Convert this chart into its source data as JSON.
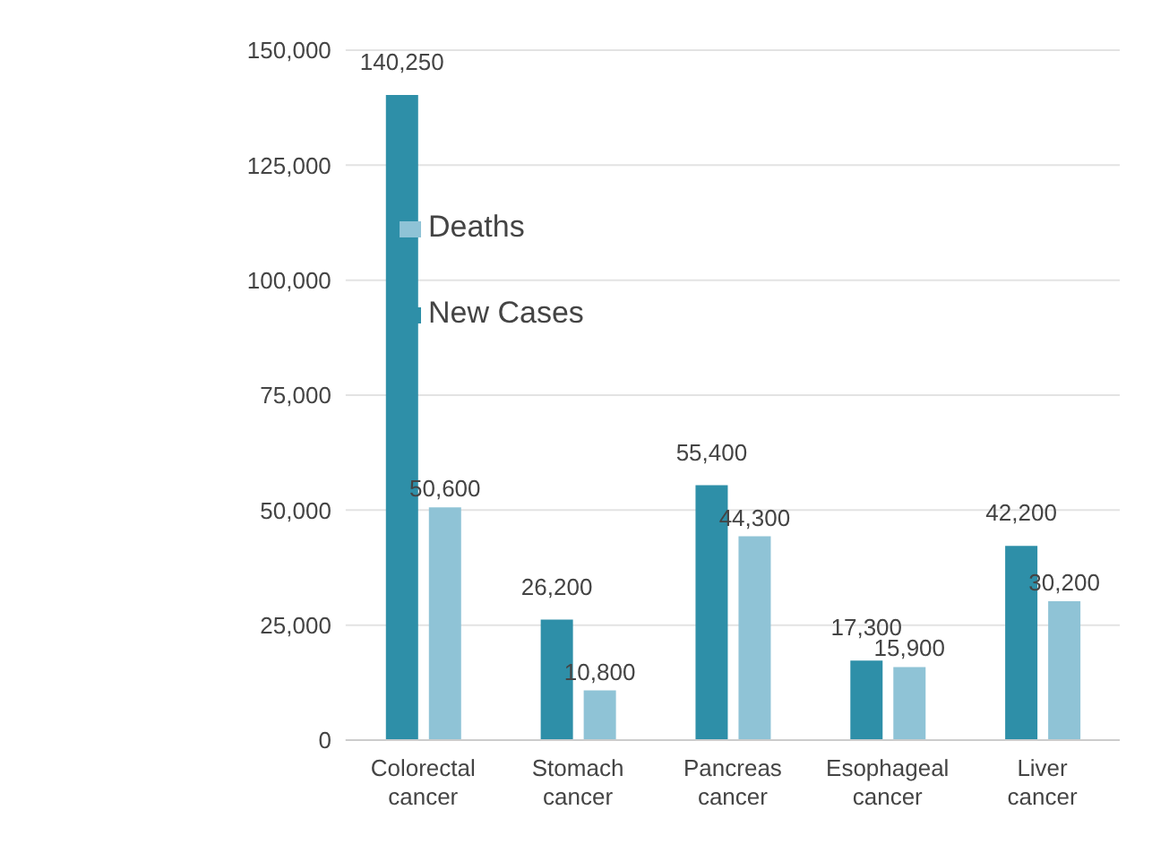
{
  "chart_data": {
    "type": "bar",
    "categories": [
      "Colorectal cancer",
      "Stomach cancer",
      "Pancreas cancer",
      "Esophageal cancer",
      "Liver cancer"
    ],
    "series": [
      {
        "name": "New Cases",
        "color": "#2e8fa8",
        "values": [
          140250,
          26200,
          55400,
          17300,
          42200
        ],
        "value_labels": [
          "140,250",
          "26,200",
          "55,400",
          "17,300",
          "42,200"
        ]
      },
      {
        "name": "Deaths",
        "color": "#8fc3d6",
        "values": [
          50600,
          10800,
          44300,
          15900,
          30200
        ],
        "value_labels": [
          "50,600",
          "10,800",
          "44,300",
          "15,900",
          "30,200"
        ]
      }
    ],
    "ylim": [
      0,
      150000
    ],
    "yticks": [
      {
        "value": 0,
        "label": "0"
      },
      {
        "value": 25000,
        "label": "25,000"
      },
      {
        "value": 50000,
        "label": "50,000"
      },
      {
        "value": 75000,
        "label": "75,000"
      },
      {
        "value": 100000,
        "label": "100,000"
      },
      {
        "value": 125000,
        "label": "125,000"
      },
      {
        "value": 150000,
        "label": "150,000"
      }
    ],
    "grid": "y",
    "legend": "top left"
  }
}
